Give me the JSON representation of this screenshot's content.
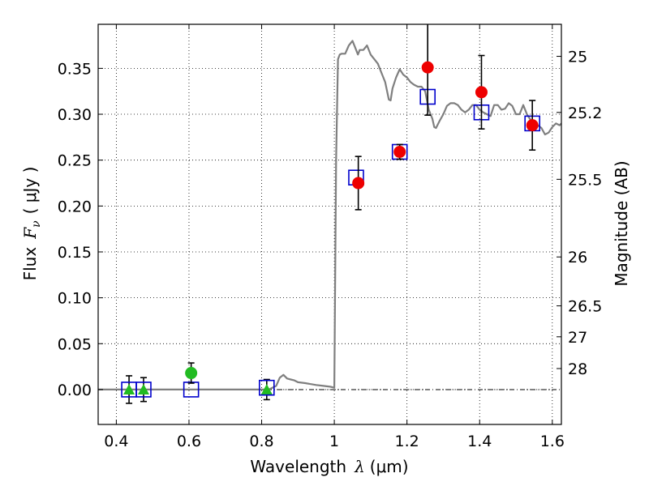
{
  "chart_data": {
    "type": "scatter",
    "xlabel_text": "Wavelength",
    "xlabel_symbol": "λ",
    "xlabel_unit": "(μm)",
    "ylabel_text": "Flux",
    "ylabel_symbol": "F",
    "ylabel_sub": "ν",
    "ylabel_unit": "( μJy )",
    "y2label": "Magnitude (AB)",
    "xlim": [
      0.35,
      1.625
    ],
    "ylim": [
      -0.038,
      0.398
    ],
    "grid": true,
    "x_ticks": [
      0.4,
      0.6,
      0.8,
      1.0,
      1.2,
      1.4,
      1.6
    ],
    "x_tick_labels": [
      "0.4",
      "0.6",
      "0.8",
      "1",
      "1.2",
      "1.4",
      "1.6"
    ],
    "y_ticks": [
      0.0,
      0.05,
      0.1,
      0.15,
      0.2,
      0.25,
      0.3,
      0.35
    ],
    "y_tick_labels": [
      "0.00",
      "0.05",
      "0.10",
      "0.15",
      "0.20",
      "0.25",
      "0.30",
      "0.35"
    ],
    "mag_ticks": [
      {
        "label": "25",
        "flux": 0.3631
      },
      {
        "label": "25.2",
        "flux": 0.302
      },
      {
        "label": "25.5",
        "flux": 0.2291
      },
      {
        "label": "26",
        "flux": 0.1445
      },
      {
        "label": "26.5",
        "flux": 0.0912
      },
      {
        "label": "27",
        "flux": 0.0575
      },
      {
        "label": "28",
        "flux": 0.0229
      }
    ],
    "zero_line": 0.0,
    "series": [
      {
        "name": "model spectrum",
        "kind": "line",
        "color": "#7f7f7f",
        "x": [
          0.35,
          0.82,
          0.84,
          0.85,
          0.86,
          0.87,
          0.88,
          0.89,
          0.9,
          0.92,
          0.95,
          0.97,
          0.99,
          1.0,
          1.005,
          1.01,
          1.015,
          1.02,
          1.03,
          1.04,
          1.05,
          1.06,
          1.065,
          1.07,
          1.08,
          1.09,
          1.1,
          1.11,
          1.12,
          1.13,
          1.14,
          1.15,
          1.155,
          1.16,
          1.17,
          1.18,
          1.19,
          1.2,
          1.21,
          1.22,
          1.23,
          1.24,
          1.25,
          1.26,
          1.27,
          1.275,
          1.28,
          1.29,
          1.3,
          1.31,
          1.32,
          1.33,
          1.34,
          1.35,
          1.36,
          1.37,
          1.38,
          1.39,
          1.4,
          1.41,
          1.42,
          1.43,
          1.44,
          1.45,
          1.46,
          1.47,
          1.48,
          1.49,
          1.5,
          1.51,
          1.52,
          1.53,
          1.54,
          1.55,
          1.56,
          1.57,
          1.58,
          1.59,
          1.6,
          1.61,
          1.62,
          1.625
        ],
        "y": [
          0.0,
          0.0,
          0.004,
          0.013,
          0.016,
          0.012,
          0.011,
          0.01,
          0.008,
          0.007,
          0.005,
          0.004,
          0.003,
          0.002,
          0.25,
          0.36,
          0.365,
          0.366,
          0.366,
          0.375,
          0.38,
          0.37,
          0.365,
          0.37,
          0.37,
          0.375,
          0.365,
          0.36,
          0.355,
          0.345,
          0.335,
          0.316,
          0.315,
          0.328,
          0.34,
          0.349,
          0.343,
          0.34,
          0.335,
          0.332,
          0.33,
          0.33,
          0.325,
          0.305,
          0.295,
          0.286,
          0.285,
          0.293,
          0.3,
          0.309,
          0.312,
          0.312,
          0.31,
          0.305,
          0.302,
          0.305,
          0.31,
          0.31,
          0.305,
          0.302,
          0.3,
          0.298,
          0.31,
          0.31,
          0.305,
          0.306,
          0.312,
          0.309,
          0.3,
          0.3,
          0.31,
          0.3,
          0.294,
          0.292,
          0.288,
          0.285,
          0.278,
          0.28,
          0.286,
          0.29,
          0.288,
          0.29
        ]
      },
      {
        "name": "model photometry",
        "kind": "open-square",
        "color": "#0000cc",
        "x": [
          0.435,
          0.475,
          0.606,
          0.814,
          1.06,
          1.18,
          1.257,
          1.405,
          1.545
        ],
        "y": [
          0.0,
          0.0,
          0.0,
          0.002,
          0.231,
          0.259,
          0.319,
          0.302,
          0.29
        ]
      },
      {
        "name": "observed detections",
        "kind": "filled-circle",
        "color": "#ee0000",
        "x": [
          1.066,
          1.18,
          1.257,
          1.405,
          1.545
        ],
        "y": [
          0.225,
          0.259,
          0.351,
          0.324,
          0.288
        ],
        "err": [
          0.029,
          0.008,
          0.052,
          0.04,
          0.027
        ]
      },
      {
        "name": "optical detection",
        "kind": "filled-circle",
        "color": "#22bb22",
        "x": [
          0.606
        ],
        "y": [
          0.018
        ],
        "err": [
          0.011
        ]
      },
      {
        "name": "upper limits",
        "kind": "triangle",
        "color": "#22bb22",
        "x": [
          0.435,
          0.475,
          0.814
        ],
        "y": [
          0.0,
          0.0,
          0.0
        ],
        "err": [
          0.015,
          0.013,
          0.011
        ]
      }
    ]
  }
}
